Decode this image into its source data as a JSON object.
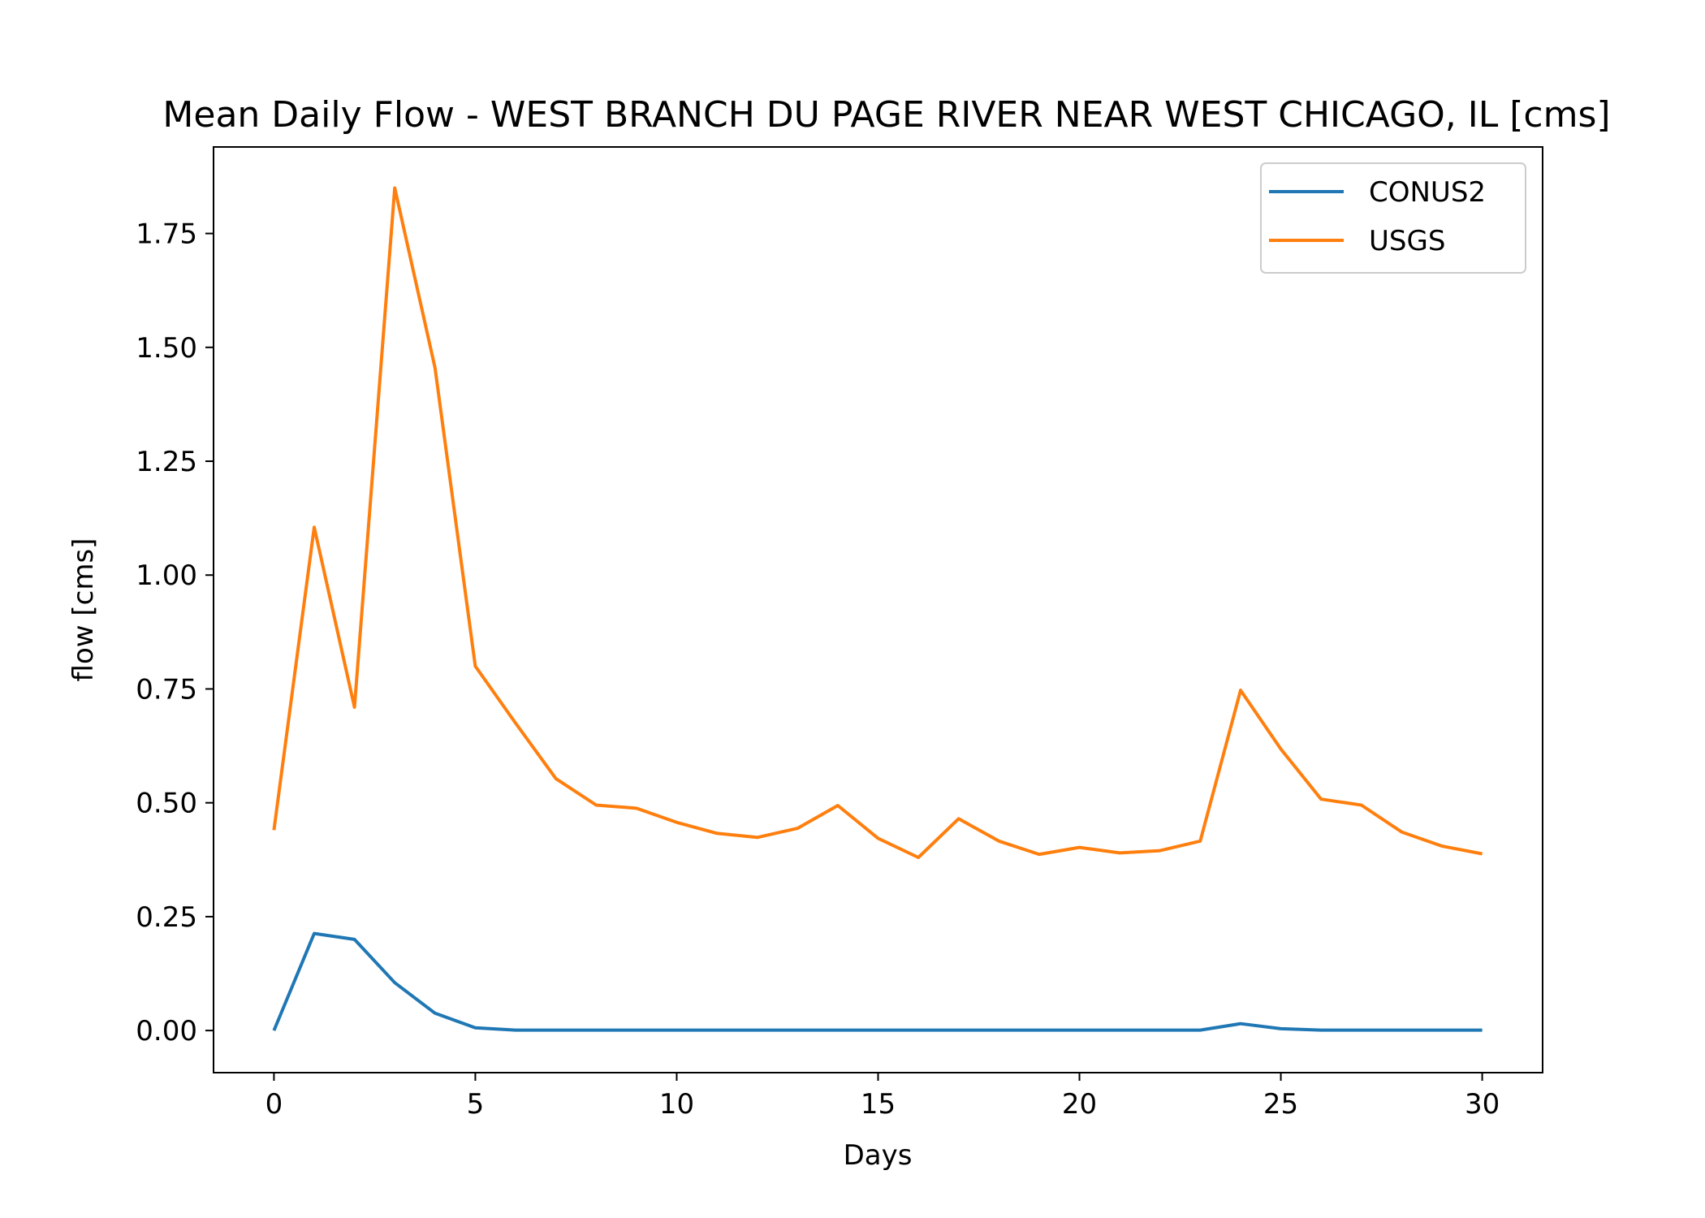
{
  "chart_data": {
    "type": "line",
    "title": "Mean Daily Flow - WEST BRANCH DU PAGE RIVER NEAR WEST CHICAGO, IL [cms]",
    "xlabel": "Days",
    "ylabel": "flow [cms]",
    "xlim": [
      -1.5,
      31.5
    ],
    "ylim": [
      -0.0925,
      1.94
    ],
    "xticks": [
      0,
      5,
      10,
      15,
      20,
      25,
      30
    ],
    "xtick_labels": [
      "0",
      "5",
      "10",
      "15",
      "20",
      "25",
      "30"
    ],
    "yticks": [
      0,
      0.25,
      0.5,
      0.75,
      1.0,
      1.25,
      1.5,
      1.75
    ],
    "ytick_labels": [
      "0.00",
      "0.25",
      "0.50",
      "0.75",
      "1.00",
      "1.25",
      "1.50",
      "1.75"
    ],
    "grid": false,
    "legend_position": "top-right",
    "x": [
      0,
      1,
      2,
      3,
      4,
      5,
      6,
      7,
      8,
      9,
      10,
      11,
      12,
      13,
      14,
      15,
      16,
      17,
      18,
      19,
      20,
      21,
      22,
      23,
      24,
      25,
      26,
      27,
      28,
      29,
      30
    ],
    "series": [
      {
        "name": "CONUS2",
        "color": "#1f77b4",
        "values": [
          0.0,
          0.213,
          0.2,
          0.105,
          0.038,
          0.006,
          0.001,
          0.001,
          0.001,
          0.001,
          0.001,
          0.001,
          0.001,
          0.001,
          0.001,
          0.001,
          0.001,
          0.001,
          0.001,
          0.001,
          0.001,
          0.001,
          0.001,
          0.001,
          0.015,
          0.004,
          0.001,
          0.001,
          0.001,
          0.001,
          0.001
        ]
      },
      {
        "name": "USGS",
        "color": "#ff7f0e",
        "values": [
          0.44,
          1.105,
          0.71,
          1.85,
          1.455,
          0.8,
          0.675,
          0.553,
          0.495,
          0.488,
          0.457,
          0.433,
          0.424,
          0.444,
          0.494,
          0.422,
          0.38,
          0.465,
          0.416,
          0.387,
          0.402,
          0.39,
          0.395,
          0.416,
          0.747,
          0.618,
          0.508,
          0.495,
          0.436,
          0.405,
          0.388
        ]
      }
    ]
  }
}
